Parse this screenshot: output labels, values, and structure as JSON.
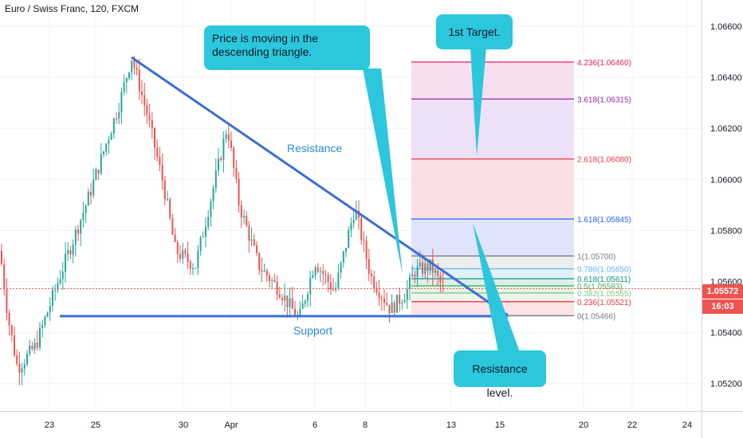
{
  "title": "Euro / Swiss Franc, 120, FXCM",
  "colors": {
    "up": "#26a69a",
    "down": "#ef5350",
    "trendline": "#3b6fd4",
    "callout": "#2cc7dc",
    "current_price": "#ef5350"
  },
  "chart_data": {
    "type": "candlestick",
    "y_axis": {
      "ticks": [
        "1.06600",
        "1.06400",
        "1.06200",
        "1.06000",
        "1.05800",
        "1.05600",
        "1.05400",
        "1.05200"
      ],
      "range": [
        1.0513,
        1.0669
      ]
    },
    "x_axis": {
      "ticks": [
        "23",
        "25",
        "30",
        "Apr",
        "6",
        "8",
        "13",
        "15",
        "20",
        "22",
        "24"
      ]
    },
    "current_price": "1.05572",
    "countdown": "16:03",
    "trendlines": [
      {
        "name": "resistance",
        "label": "Resistance",
        "from": {
          "date": "Mar 26",
          "price": 1.0648
        },
        "to": {
          "date": "Apr 15",
          "price": 1.0547
        }
      },
      {
        "name": "support",
        "label": "Support",
        "from": {
          "date": "Mar 22",
          "price": 1.05466
        },
        "to": {
          "date": "Apr 15",
          "price": 1.05466
        }
      }
    ],
    "fib_levels": [
      {
        "label": "0(1.05466)",
        "price": 1.05466,
        "color": "#787b86"
      },
      {
        "label": "0.236(1.05521)",
        "price": 1.05521,
        "color": "#f23645"
      },
      {
        "label": "0.382(1.05555)",
        "price": 1.05555,
        "color": "#81c784"
      },
      {
        "label": "0.5(1.05583)",
        "price": 1.05583,
        "color": "#4caf50"
      },
      {
        "label": "0.618(1.05611)",
        "price": 1.05611,
        "color": "#089981"
      },
      {
        "label": "0.786(1.05650)",
        "price": 1.0565,
        "color": "#64b5f6"
      },
      {
        "label": "1(1.05700)",
        "price": 1.057,
        "color": "#787b86"
      },
      {
        "label": "1.618(1.05845)",
        "price": 1.05845,
        "color": "#2962ff"
      },
      {
        "label": "2.618(1.06080)",
        "price": 1.0608,
        "color": "#f23645"
      },
      {
        "label": "3.618(1.06315)",
        "price": 1.06315,
        "color": "#9c27b0"
      },
      {
        "label": "4.236(1.06460)",
        "price": 1.0646,
        "color": "#e91e63"
      }
    ]
  },
  "annotations": {
    "triangle_note": "Price is moving in the descending triangle.",
    "target_note": "1st Target.",
    "resistance_note": "Resistance level.",
    "resistance_label": "Resistance",
    "support_label": "Support"
  }
}
